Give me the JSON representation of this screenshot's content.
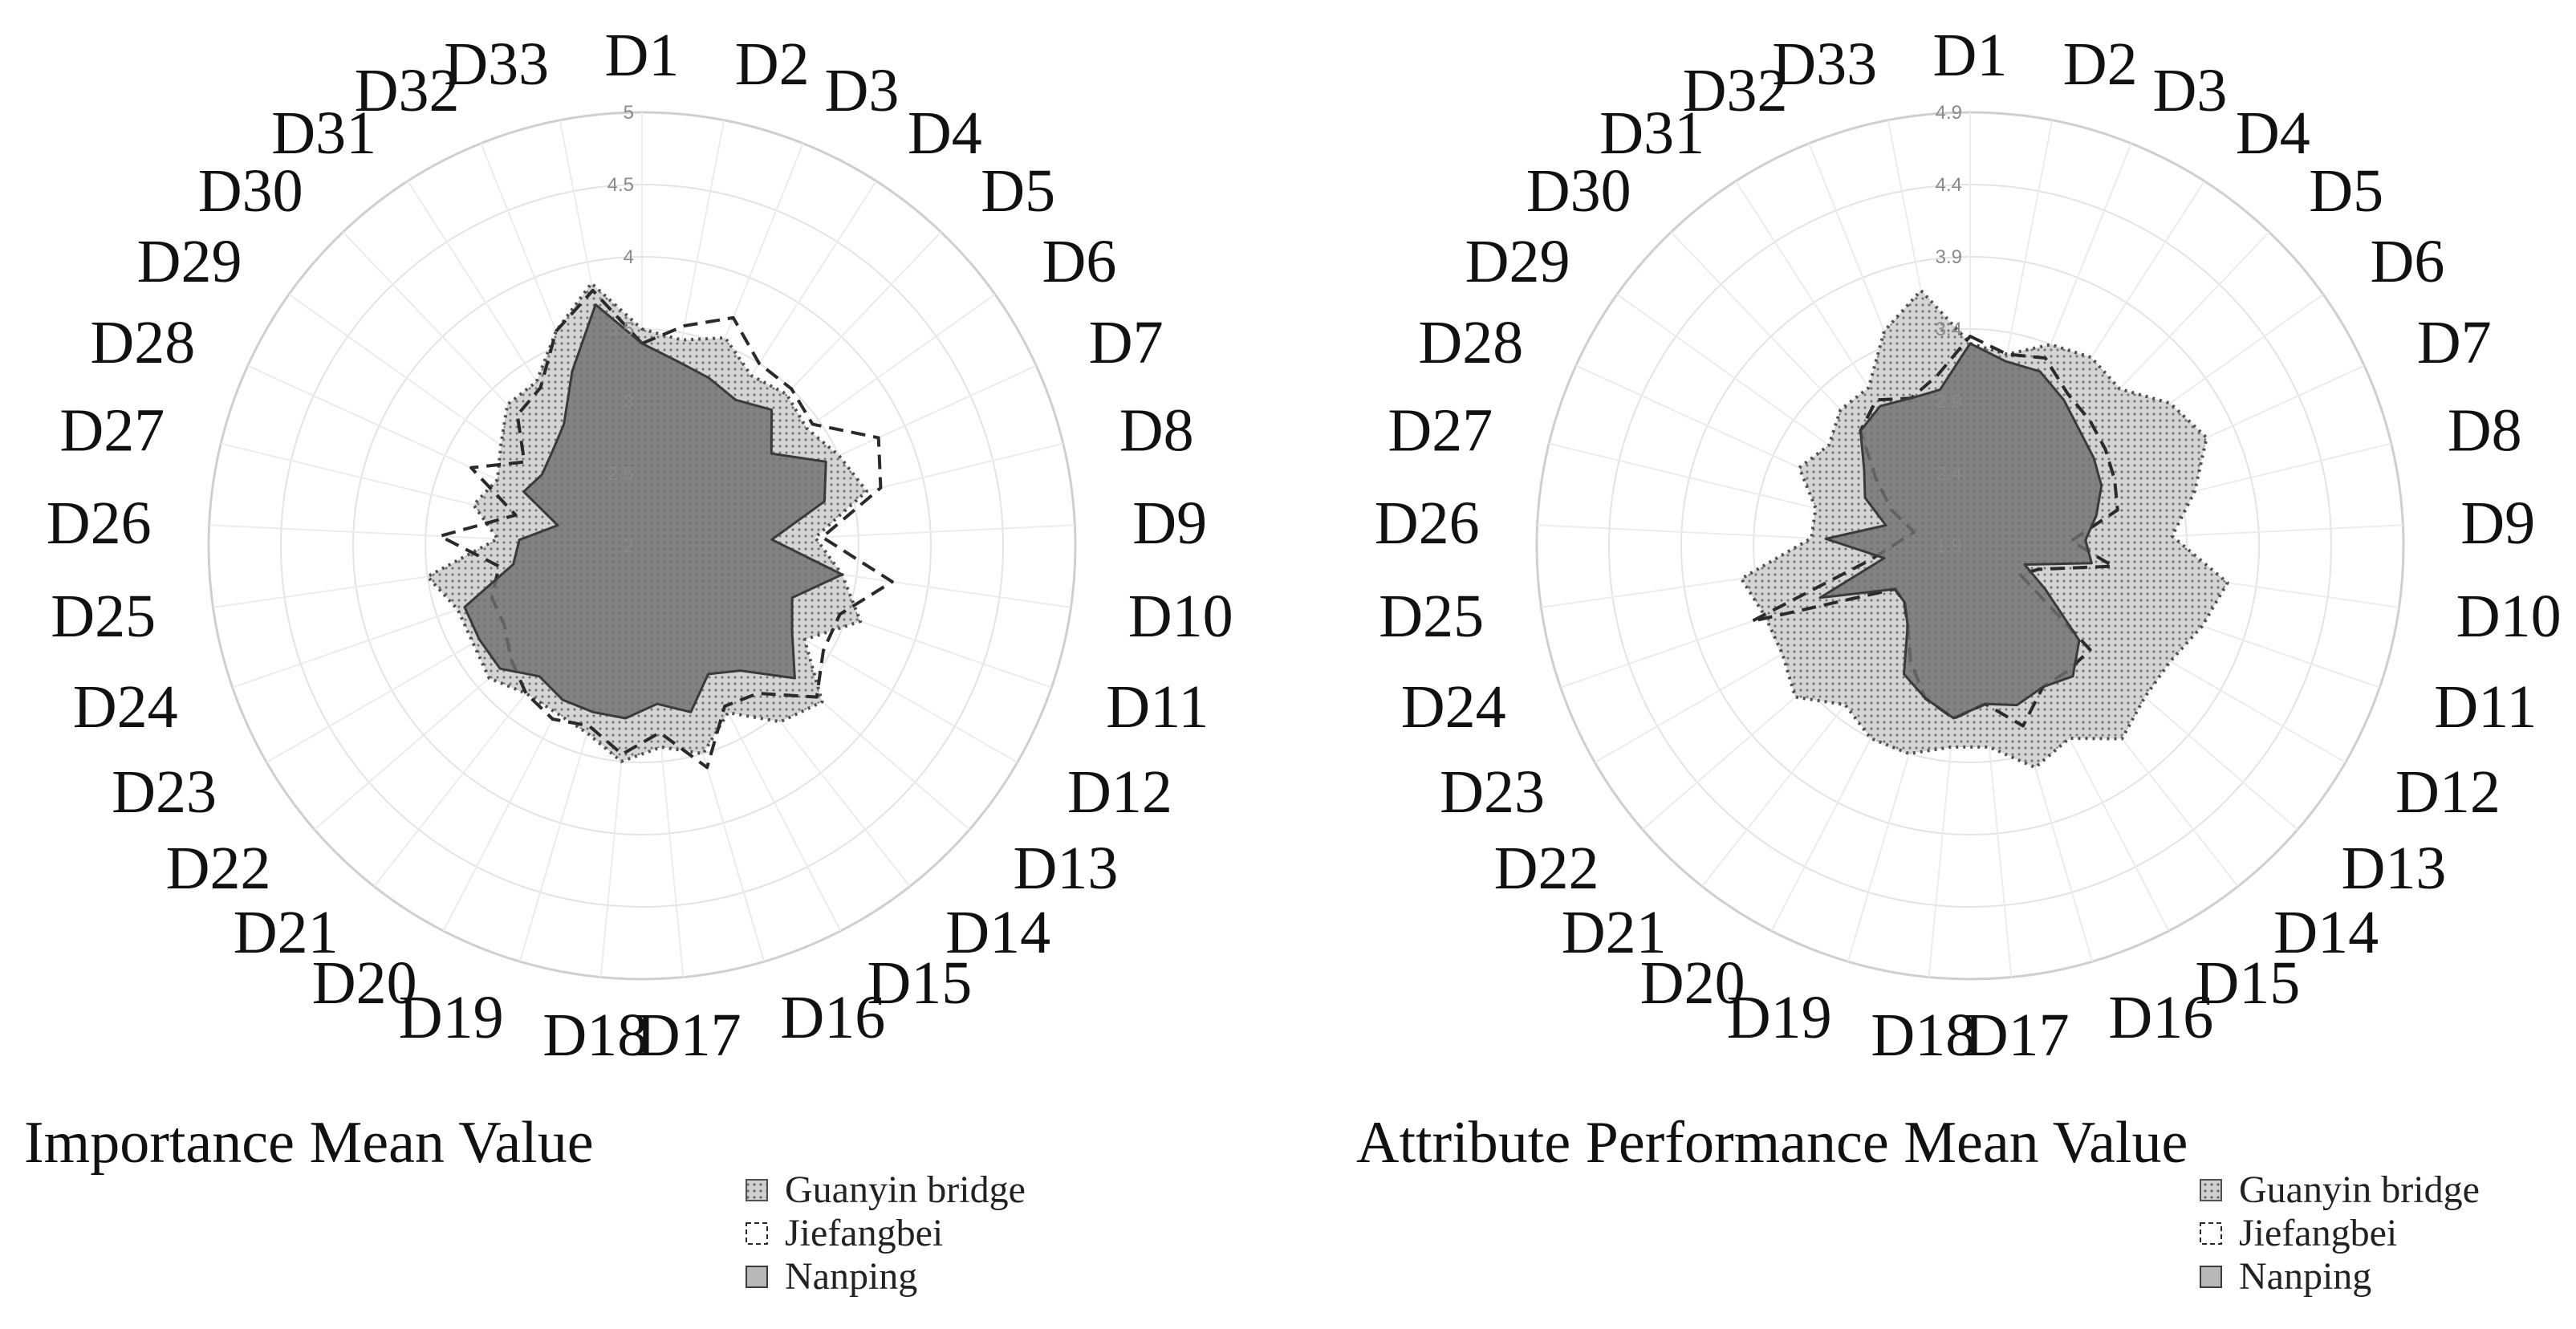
{
  "chart_data": [
    {
      "type": "radar",
      "title": "Importance Mean Value",
      "categories": [
        "D1",
        "D2",
        "D3",
        "D4",
        "D5",
        "D6",
        "D7",
        "D8",
        "D9",
        "D10",
        "D11",
        "D12",
        "D13",
        "D14",
        "D15",
        "D16",
        "D17",
        "D18",
        "D19",
        "D20",
        "D21",
        "D22",
        "D23",
        "D24",
        "D25",
        "D26",
        "D27",
        "D28",
        "D29",
        "D30",
        "D31",
        "D32",
        "D33"
      ],
      "rmin": 2,
      "rmax": 5,
      "ticks": [
        "2",
        "2.5",
        "3",
        "3.5",
        "4",
        "4.5",
        "5"
      ],
      "tick_values": [
        2,
        2.5,
        3,
        3.5,
        4,
        4.5,
        5
      ],
      "legend_position": "bottom-right",
      "series": [
        {
          "name": "Guanyin bridge",
          "style": "dotted",
          "fill": "#c4c4c4",
          "stroke": "#505050",
          "values": [
            3.5,
            3.45,
            3.55,
            3.4,
            3.45,
            3.4,
            3.5,
            3.6,
            3.2,
            3.4,
            3.6,
            3.3,
            3.65,
            3.55,
            3.3,
            3.5,
            3.4,
            3.5,
            3.35,
            3.3,
            3.3,
            3.4,
            3.35,
            3.35,
            3.5,
            3.0,
            3.2,
            3.1,
            3.2,
            3.35,
            3.35,
            3.6,
            3.85
          ]
        },
        {
          "name": "Jiefangbei",
          "style": "dashed",
          "fill": "none",
          "stroke": "#2a2a2a",
          "values": [
            3.4,
            3.55,
            3.7,
            3.5,
            3.5,
            3.45,
            3.8,
            3.7,
            3.25,
            3.75,
            3.45,
            3.45,
            3.6,
            3.3,
            3.25,
            3.6,
            3.3,
            3.45,
            3.3,
            3.35,
            3.3,
            3.2,
            3.1,
            3.1,
            3.0,
            3.4,
            2.9,
            3.3,
            3.0,
            3.25,
            3.3,
            3.6,
            3.8
          ]
        },
        {
          "name": "Nanping",
          "style": "solid",
          "fill": "#6f6f6f",
          "stroke": "#3a3a3a",
          "values": [
            3.4,
            3.3,
            3.25,
            3.2,
            3.3,
            3.1,
            3.4,
            3.3,
            2.9,
            3.4,
            3.1,
            3.2,
            3.4,
            3.1,
            3.0,
            3.2,
            3.1,
            3.2,
            3.2,
            3.2,
            3.15,
            3.3,
            3.3,
            3.3,
            2.9,
            2.85,
            2.6,
            2.9,
            2.85,
            2.9,
            3.0,
            3.3,
            3.7
          ]
        }
      ]
    },
    {
      "type": "radar",
      "title": "Attribute Performance Mean Value",
      "categories": [
        "D1",
        "D2",
        "D3",
        "D4",
        "D5",
        "D6",
        "D7",
        "D8",
        "D9",
        "D10",
        "D11",
        "D12",
        "D13",
        "D14",
        "D15",
        "D16",
        "D17",
        "D18",
        "D19",
        "D20",
        "D21",
        "D22",
        "D23",
        "D24",
        "D25",
        "D26",
        "D27",
        "D28",
        "D29",
        "D30",
        "D31",
        "D32",
        "D33"
      ],
      "rmin": 1.9,
      "rmax": 4.9,
      "ticks": [
        "1.9",
        "2.4",
        "2.9",
        "3.4",
        "3.9",
        "4.4",
        "4.9"
      ],
      "tick_values": [
        1.9,
        2.4,
        2.9,
        3.4,
        3.9,
        4.4,
        4.9
      ],
      "legend_position": "bottom-right",
      "series": [
        {
          "name": "Guanyin bridge",
          "style": "dotted",
          "fill": "#c4c4c4",
          "stroke": "#505050",
          "values": [
            3.3,
            3.25,
            3.4,
            3.45,
            3.4,
            3.6,
            3.7,
            3.5,
            3.3,
            3.7,
            3.6,
            3.5,
            3.5,
            3.6,
            3.4,
            3.5,
            3.3,
            3.3,
            3.4,
            3.4,
            3.3,
            3.5,
            3.4,
            3.4,
            3.5,
            3.0,
            3.0,
            3.2,
            3.1,
            3.2,
            3.2,
            3.5,
            3.7
          ]
        },
        {
          "name": "Jiefangbei",
          "style": "dashed",
          "fill": "none",
          "stroke": "#2a2a2a",
          "values": [
            3.35,
            3.25,
            3.3,
            3.15,
            3.1,
            3.05,
            3.0,
            2.95,
            2.6,
            2.9,
            2.4,
            2.3,
            3.0,
            3.0,
            3.0,
            3.2,
            3.0,
            3.1,
            3.0,
            2.8,
            2.6,
            2.5,
            2.5,
            3.5,
            2.6,
            2.4,
            2.3,
            2.5,
            2.7,
            3.0,
            3.1,
            3.0,
            3.1
          ]
        },
        {
          "name": "Nanping",
          "style": "solid",
          "fill": "#6f6f6f",
          "stroke": "#3a3a3a",
          "values": [
            3.3,
            3.2,
            3.2,
            3.1,
            3.0,
            2.95,
            2.9,
            2.8,
            2.7,
            2.75,
            2.3,
            2.5,
            2.9,
            3.05,
            3.0,
            3.05,
            3.0,
            3.1,
            3.0,
            2.9,
            2.6,
            2.5,
            2.5,
            3.0,
            2.5,
            2.9,
            2.5,
            2.7,
            2.8,
            3.0,
            3.05,
            3.0,
            3.0
          ]
        }
      ]
    }
  ]
}
